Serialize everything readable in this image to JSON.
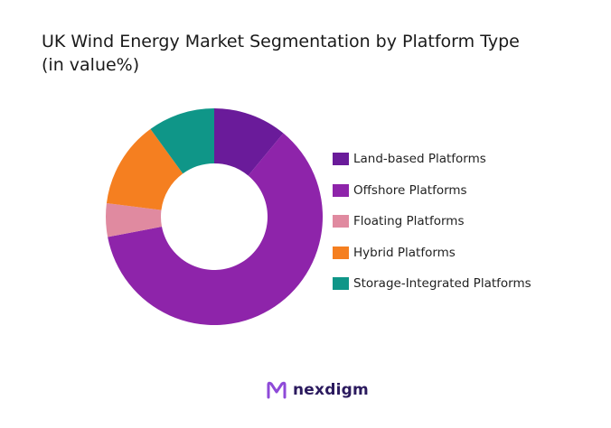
{
  "chart_data": {
    "type": "pie",
    "title_line1": "UK Wind Energy Market Segmentation by Platform Type",
    "title_line2": "(in value%)",
    "categories": [
      "Land-based Platforms",
      "Offshore Platforms",
      "Floating Platforms",
      "Hybrid Platforms",
      "Storage-Integrated Platforms"
    ],
    "values": [
      11,
      61,
      5,
      13,
      10
    ],
    "colors": [
      "#6a1b9a",
      "#8e24aa",
      "#e08aa0",
      "#f57f20",
      "#0f9688"
    ],
    "donut": true,
    "start_angle_deg": 0,
    "legend_position": "right"
  },
  "brand": {
    "name": "nexdigm",
    "color": "#2b1a5e",
    "accent": "#8e4ad8"
  }
}
